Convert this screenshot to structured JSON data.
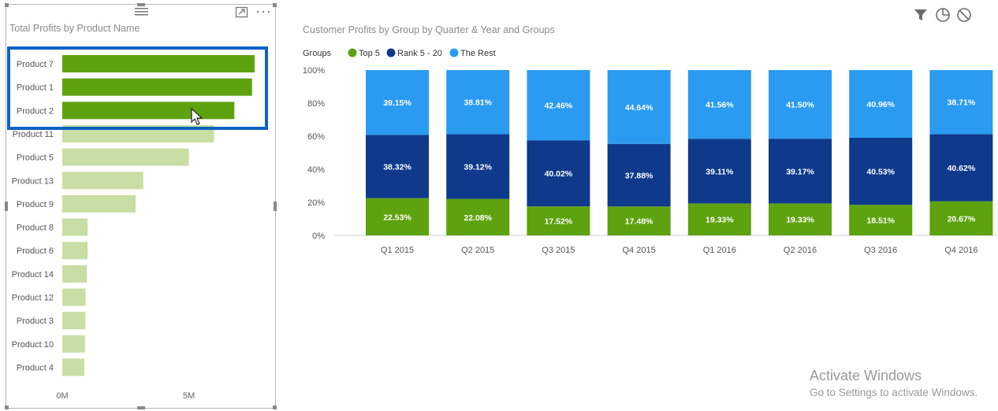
{
  "toolbar": {
    "filter_icon": "filter-icon",
    "focus_icon": "focus-mode-icon",
    "more_label": "···"
  },
  "left_chart_title": "Total Profits by Product Name",
  "right_chart_title": "Customer Profits by Group by Quarter & Year and Groups",
  "watermark": {
    "title": "Activate Windows",
    "subtitle": "Go to Settings to activate Windows."
  },
  "colors": {
    "highlight_bar": "#5ea210",
    "dim_bar": "#c8dea4",
    "top5": "#5ea210",
    "rank5_20": "#0f3a8c",
    "the_rest": "#2a9bf0",
    "selection": "#0e63c2"
  },
  "chart_data": [
    {
      "type": "bar",
      "orientation": "horizontal",
      "title": "Total Profits by Product Name",
      "categories": [
        "Product 7",
        "Product 1",
        "Product 2",
        "Product 11",
        "Product 5",
        "Product 13",
        "Product 9",
        "Product 8",
        "Product 6",
        "Product 14",
        "Product 12",
        "Product 3",
        "Product 10",
        "Product 4"
      ],
      "values": [
        7.6,
        7.5,
        6.8,
        6.0,
        5.0,
        3.2,
        2.9,
        1.0,
        1.0,
        0.97,
        0.92,
        0.91,
        0.9,
        0.87
      ],
      "highlighted": [
        "Product 7",
        "Product 1",
        "Product 2"
      ],
      "value_unit": "M",
      "xlim": [
        0,
        8
      ],
      "xticks": [
        "0M",
        "5M"
      ],
      "xtick_values": [
        0,
        5
      ]
    },
    {
      "type": "bar",
      "stacked": "percent",
      "title": "Customer Profits by Group by Quarter & Year and Groups",
      "legend_title": "Groups",
      "legend_position": "top-left",
      "categories": [
        "Q1 2015",
        "Q2 2015",
        "Q3 2015",
        "Q4 2015",
        "Q1 2016",
        "Q2 2016",
        "Q3 2016",
        "Q4 2016"
      ],
      "yticks": [
        "0%",
        "20%",
        "40%",
        "60%",
        "80%",
        "100%"
      ],
      "ylim": [
        0,
        100
      ],
      "series": [
        {
          "name": "Top 5",
          "values": [
            22.53,
            22.08,
            17.52,
            17.48,
            19.33,
            19.33,
            18.51,
            20.67
          ],
          "labels": [
            "22.53%",
            "22.08%",
            "17.52%",
            "17.48%",
            "19.33%",
            "19.33%",
            "18.51%",
            "20.67%"
          ]
        },
        {
          "name": "Rank 5 - 20",
          "values": [
            38.32,
            39.12,
            40.02,
            37.88,
            39.11,
            39.17,
            40.53,
            40.62
          ],
          "labels": [
            "38.32%",
            "39.12%",
            "40.02%",
            "37.88%",
            "39.11%",
            "39.17%",
            "40.53%",
            "40.62%"
          ]
        },
        {
          "name": "The Rest",
          "values": [
            39.15,
            38.81,
            42.46,
            44.64,
            41.56,
            41.5,
            40.96,
            38.71
          ],
          "labels": [
            "39.15%",
            "38.81%",
            "42.46%",
            "44.64%",
            "41.56%",
            "41.50%",
            "40.96%",
            "38.71%"
          ]
        }
      ]
    }
  ]
}
